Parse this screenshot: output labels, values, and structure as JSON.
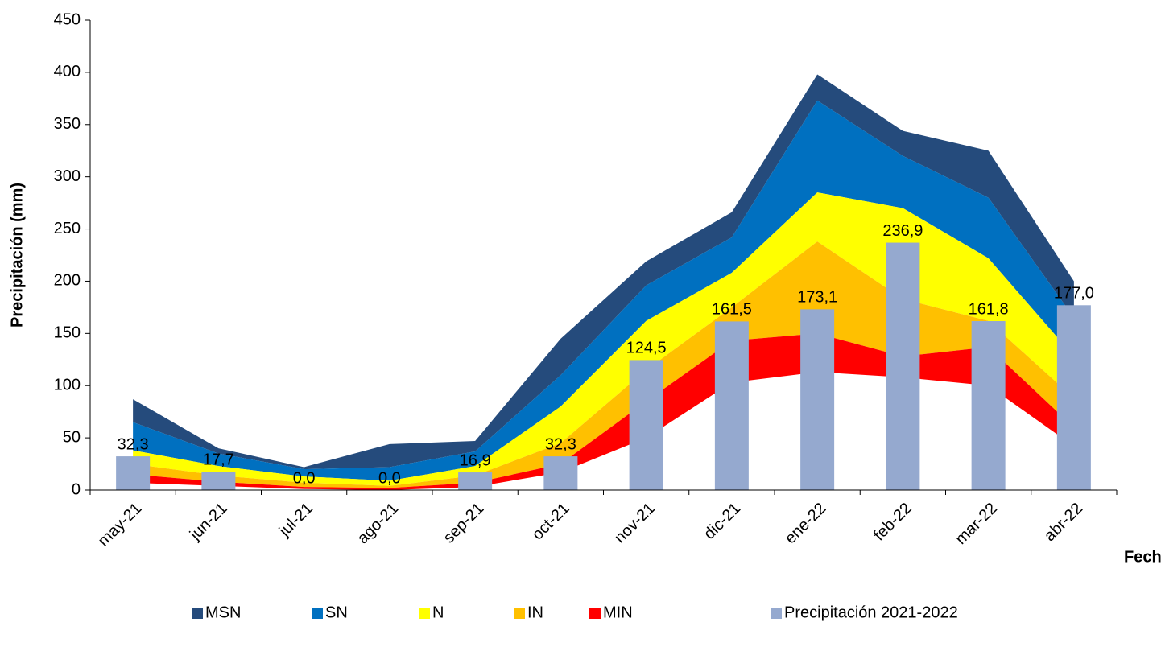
{
  "chart_data": {
    "type": "area",
    "y_label": "Precipitación (mm)",
    "x_label": "Fecha",
    "categories": [
      "may-21",
      "jun-21",
      "jul-21",
      "ago-21",
      "sep-21",
      "oct-21",
      "nov-21",
      "dic-21",
      "ene-22",
      "feb-22",
      "mar-22",
      "abr-22"
    ],
    "ylim": [
      0,
      450
    ],
    "yticks": [
      0,
      50,
      100,
      150,
      200,
      250,
      300,
      350,
      400,
      450
    ],
    "grid": false,
    "series": [
      {
        "name": "MSN",
        "type": "area",
        "color": "#254b7c",
        "values": [
          87,
          40,
          22,
          44,
          47,
          145,
          219,
          266,
          398,
          344,
          325,
          200
        ]
      },
      {
        "name": "SN",
        "type": "area",
        "color": "#0070c0",
        "values": [
          65,
          35,
          20,
          22,
          37,
          110,
          196,
          242,
          373,
          320,
          280,
          165
        ]
      },
      {
        "name": "N",
        "type": "area",
        "color": "#ffff00",
        "values": [
          38,
          23,
          13,
          9,
          23,
          80,
          162,
          208,
          285,
          270,
          222,
          128
        ]
      },
      {
        "name": "IN",
        "type": "area",
        "color": "#ffc000",
        "values": [
          25,
          14,
          7,
          4,
          14,
          45,
          115,
          175,
          238,
          183,
          162,
          88
        ]
      },
      {
        "name": "MIN",
        "type": "area",
        "color": "#ff0000",
        "values": [
          15,
          8,
          3,
          2,
          7,
          25,
          85,
          143,
          150,
          128,
          137,
          60
        ],
        "lower": [
          7,
          4,
          1,
          0,
          3,
          17,
          50,
          103,
          113,
          108,
          100,
          42
        ]
      },
      {
        "name": "Precipitación 2021-2022",
        "type": "bar",
        "color": "#95a9cf",
        "values": [
          32.3,
          17.7,
          0,
          0,
          16.9,
          32.3,
          124.5,
          161.5,
          173.1,
          236.9,
          161.8,
          177
        ],
        "value_labels": [
          "32,3",
          "17,7",
          "0,0",
          "0,0",
          "16,9",
          "32,3",
          "124,5",
          "161,5",
          "173,1",
          "236,9",
          "161,8",
          "177,0"
        ]
      }
    ]
  }
}
